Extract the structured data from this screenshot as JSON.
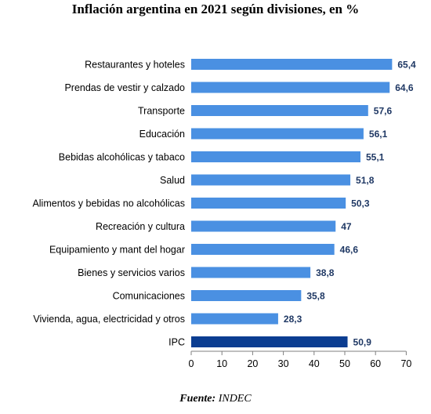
{
  "chart_data": {
    "type": "bar",
    "orientation": "horizontal",
    "title": "Inflación argentina en 2021 según divisiones, en %",
    "categories": [
      "Restaurantes y hoteles",
      "Prendas de vestir y calzado",
      "Transporte",
      "Educación",
      "Bebidas alcohólicas y tabaco",
      "Salud",
      "Alimentos y bebidas no alcohólicas",
      "Recreación y cultura",
      "Equipamiento y mant del hogar",
      "Bienes y servicios varios",
      "Comunicaciones",
      "Vivienda, agua, electricidad y otros",
      "IPC"
    ],
    "values": [
      65.4,
      64.6,
      57.6,
      56.1,
      55.1,
      51.8,
      50.3,
      47,
      46.6,
      38.8,
      35.8,
      28.3,
      50.9
    ],
    "value_labels": [
      "65,4",
      "64,6",
      "57,6",
      "56,1",
      "55,1",
      "51,8",
      "50,3",
      "47",
      "46,6",
      "38,8",
      "35,8",
      "28,3",
      "50,9"
    ],
    "xlim": [
      0,
      70
    ],
    "xticks": [
      0,
      10,
      20,
      30,
      40,
      50,
      60,
      70
    ],
    "xlabel": "",
    "ylabel": "",
    "grid": false,
    "colors": {
      "bar": "#4a90e2",
      "highlight": "#0b3d91",
      "value_label": "#1f3864"
    },
    "highlight_category": "IPC"
  },
  "source": {
    "label": "Fuente:",
    "text": "INDEC"
  }
}
